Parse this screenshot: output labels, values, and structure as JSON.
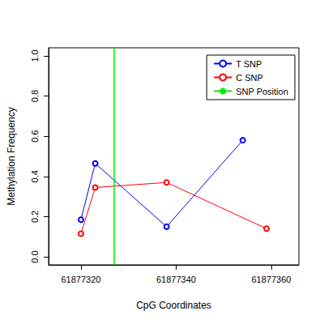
{
  "chart_data": {
    "type": "line",
    "x_label": "CpG Coordinates",
    "y_label": "Methylation Frequency",
    "xlim": [
      61877313.2,
      61877365.8
    ],
    "xticks": [
      61877320,
      61877340,
      61877360
    ],
    "ylim": [
      -0.04,
      1.04
    ],
    "yticks": [
      {
        "value": 0,
        "label": "0.0"
      },
      0.2,
      0.4,
      0.6,
      0.8,
      {
        "value": 1,
        "label": "1.0"
      }
    ],
    "grid": false,
    "legend": "top-right",
    "series": [
      {
        "name": "T SNP",
        "color": "#0000ff",
        "marker": "circle",
        "line_style": "solid",
        "x": [
          61877320,
          61877323,
          61877338,
          61877354
        ],
        "values": [
          0.185,
          0.465,
          0.15,
          0.58
        ]
      },
      {
        "name": "C SNP",
        "color": "#ff0000",
        "marker": "circle",
        "line_style": "solid",
        "x": [
          61877320,
          61877323,
          61877338,
          61877359
        ],
        "values": [
          0.115,
          0.345,
          0.37,
          0.14
        ]
      },
      {
        "name": "SNP Position",
        "color": "#00ee00",
        "type": "vline",
        "line_style": "solid",
        "x": [
          61877327
        ]
      }
    ]
  }
}
